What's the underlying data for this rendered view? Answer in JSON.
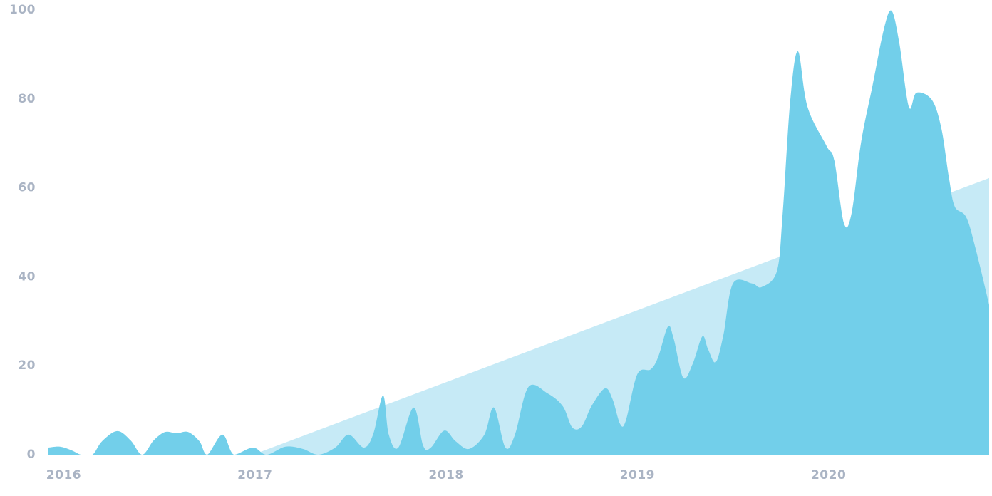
{
  "chart_data": {
    "type": "area",
    "xlim": [
      2015.92,
      2020.84
    ],
    "xticks": [
      2016,
      2017,
      2018,
      2019,
      2020
    ],
    "ylim": [
      0,
      100
    ],
    "yticks": [
      0,
      20,
      40,
      60,
      80,
      100
    ],
    "series": [
      {
        "color": "#c6eaf6",
        "x": [
          2016.99,
          2020.84
        ],
        "values": [
          0,
          62.2
        ]
      },
      {
        "color": "#72cfea",
        "x": [
          2015.92,
          2015.98,
          2016.04,
          2016.09,
          2016.15,
          2016.2,
          2016.28,
          2016.35,
          2016.41,
          2016.47,
          2016.53,
          2016.59,
          2016.65,
          2016.71,
          2016.75,
          2016.83,
          2016.89,
          2016.99,
          2017.06,
          2017.16,
          2017.25,
          2017.33,
          2017.42,
          2017.49,
          2017.57,
          2017.62,
          2017.67,
          2017.7,
          2017.75,
          2017.83,
          2017.88,
          2017.92,
          2017.99,
          2018.05,
          2018.12,
          2018.2,
          2018.25,
          2018.31,
          2018.36,
          2018.43,
          2018.53,
          2018.61,
          2018.66,
          2018.71,
          2018.76,
          2018.83,
          2018.87,
          2018.91,
          2018.94,
          2019.0,
          2019.07,
          2019.11,
          2019.16,
          2019.19,
          2019.24,
          2019.29,
          2019.34,
          2019.37,
          2019.41,
          2019.45,
          2019.5,
          2019.6,
          2019.65,
          2019.73,
          2019.76,
          2019.8,
          2019.84,
          2019.89,
          2019.99,
          2020.03,
          2020.08,
          2020.12,
          2020.17,
          2020.23,
          2020.29,
          2020.33,
          2020.37,
          2020.42,
          2020.46,
          2020.54,
          2020.59,
          2020.63,
          2020.66,
          2020.72,
          2020.77,
          2020.84
        ],
        "values": [
          1.6,
          1.8,
          1,
          0,
          0,
          3,
          5.3,
          3.2,
          0,
          3.2,
          5.1,
          4.8,
          5.1,
          3,
          0,
          4.5,
          0,
          1.6,
          0,
          1.8,
          1.3,
          0,
          1.6,
          4.5,
          1.6,
          4.8,
          13.3,
          4.5,
          1.6,
          10.6,
          2,
          1.6,
          5.4,
          3,
          1.3,
          4.5,
          10.6,
          1.6,
          4.5,
          15.2,
          13.8,
          10.9,
          6.1,
          6.4,
          10.9,
          14.9,
          12.5,
          6.9,
          7.7,
          18.1,
          19.2,
          22.1,
          28.8,
          26.1,
          17.3,
          20.5,
          26.6,
          23.7,
          20.8,
          26.9,
          38.5,
          38.5,
          37.7,
          41.3,
          54.2,
          79.8,
          90.7,
          78.2,
          69.4,
          66.2,
          52.1,
          54.2,
          70.2,
          83,
          95.8,
          99.8,
          92.6,
          78.2,
          81.4,
          79.8,
          73.4,
          62.2,
          55.8,
          53.4,
          46.2,
          33.7
        ]
      }
    ]
  }
}
